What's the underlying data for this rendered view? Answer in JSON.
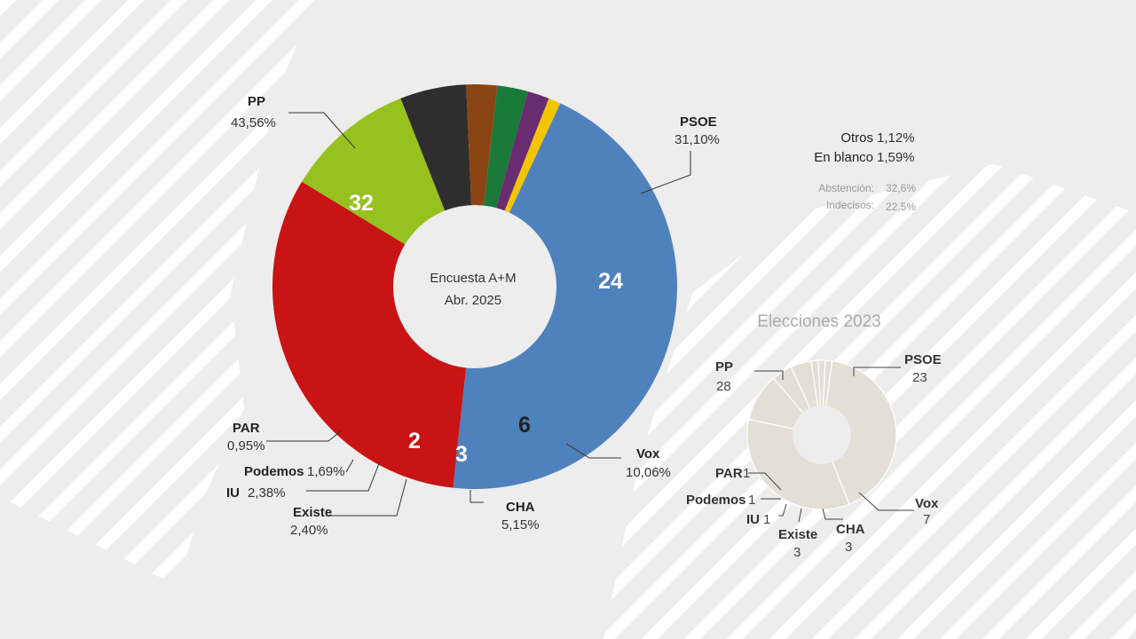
{
  "chart_data": [
    {
      "type": "pie",
      "variant": "donut",
      "center_label": [
        "Encuesta A+M",
        "Abr. 2025"
      ],
      "slices": [
        {
          "party": "PP",
          "percent": "43,56%",
          "value": 43.56,
          "seats": 32,
          "color": "#4f81bd"
        },
        {
          "party": "PSOE",
          "percent": "31,10%",
          "value": 31.1,
          "seats": 24,
          "color": "#c81414"
        },
        {
          "party": "Vox",
          "percent": "10,06%",
          "value": 10.06,
          "seats": 6,
          "color": "#96c11f"
        },
        {
          "party": "CHA",
          "percent": "5,15%",
          "value": 5.15,
          "seats": 3,
          "color": "#2e2e2e"
        },
        {
          "party": "Existe",
          "percent": "2,40%",
          "value": 2.4,
          "seats": 2,
          "color": "#8b4513"
        },
        {
          "party": "IU",
          "percent": "2,38%",
          "value": 2.38,
          "seats": null,
          "color": "#1a7a3a"
        },
        {
          "party": "Podemos",
          "percent": "1,69%",
          "value": 1.69,
          "seats": null,
          "color": "#6a2c70"
        },
        {
          "party": "PAR",
          "percent": "0,95%",
          "value": 0.95,
          "seats": null,
          "color": "#f2c500"
        }
      ],
      "notes": [
        {
          "label": "Otros",
          "value": "1,12%"
        },
        {
          "label": "En blanco",
          "value": "1,59%"
        }
      ],
      "secondary_notes": [
        {
          "label": "Abstención:",
          "value": "32,6%"
        },
        {
          "label": "Indecisos:",
          "value": "22,5%"
        }
      ]
    },
    {
      "type": "pie",
      "variant": "donut",
      "title": "Elecciones 2023",
      "color": "#e2dfd6",
      "slices": [
        {
          "party": "PP",
          "seats": 28
        },
        {
          "party": "PSOE",
          "seats": 23
        },
        {
          "party": "Vox",
          "seats": 7
        },
        {
          "party": "CHA",
          "seats": 3
        },
        {
          "party": "Existe",
          "seats": 3
        },
        {
          "party": "IU",
          "seats": 1
        },
        {
          "party": "Podemos",
          "seats": 1
        },
        {
          "party": "PAR",
          "seats": 1
        }
      ]
    }
  ]
}
